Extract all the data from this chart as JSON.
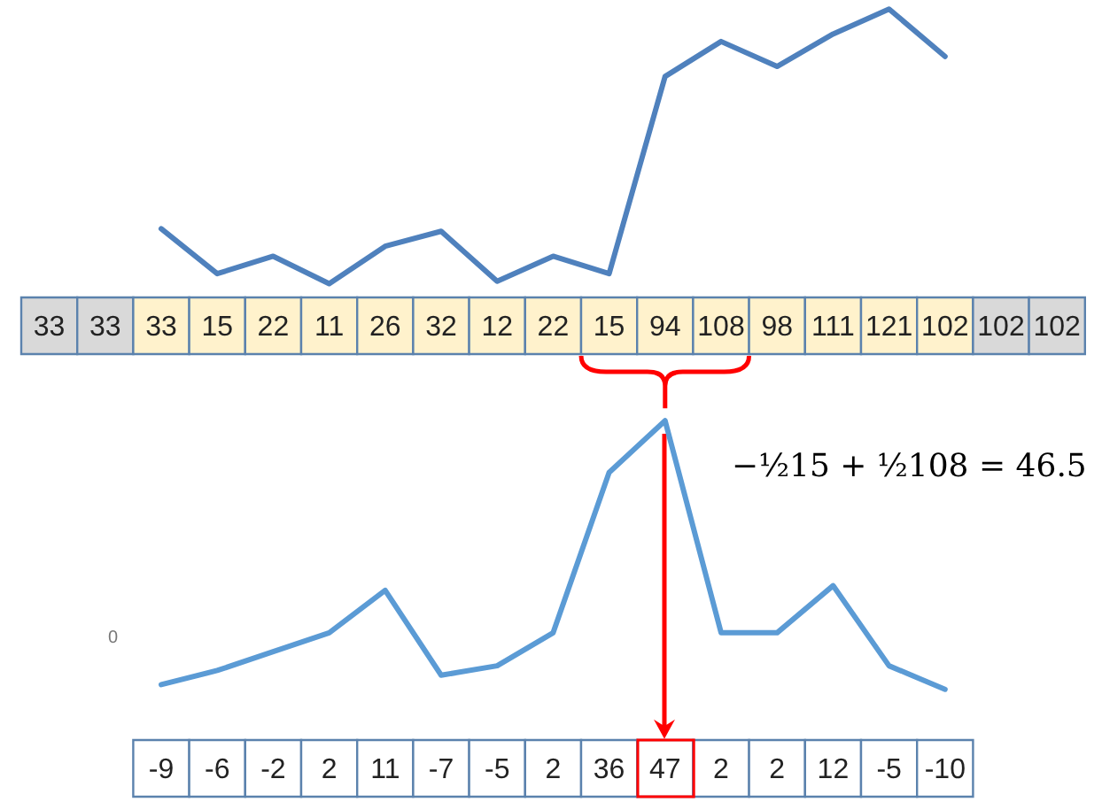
{
  "chart_data": [
    {
      "type": "line",
      "categories": [
        null,
        null,
        null,
        null,
        null,
        null,
        null,
        null,
        null,
        null,
        null,
        null,
        null,
        null,
        null,
        null,
        null,
        null,
        null
      ],
      "series": [
        {
          "color": "#4f81bd",
          "values": [
            null,
            null,
            33,
            15,
            22,
            11,
            26,
            32,
            12,
            22,
            15,
            94,
            108,
            98,
            111,
            121,
            102,
            null,
            null
          ],
          "value_labels": [
            "33",
            "33",
            "33",
            "15",
            "22",
            "11",
            "26",
            "32",
            "12",
            "22",
            "15",
            "94",
            "108",
            "98",
            "111",
            "121",
            "102",
            "102",
            "102"
          ]
        }
      ],
      "tick_labels": false,
      "marker": "none"
    },
    {
      "type": "line",
      "categories": [
        null,
        null,
        null,
        null,
        null,
        null,
        null,
        null,
        null,
        null,
        null,
        null,
        null,
        null,
        null
      ],
      "series": [
        {
          "color": "#5b9bd5",
          "values": [
            -9,
            -6,
            -2,
            2,
            11,
            -7,
            -5,
            2,
            36,
            47,
            2,
            2,
            12,
            -5,
            -10
          ]
        }
      ],
      "tick_labels": false,
      "data_labels": true,
      "marker": "none",
      "annotations": [
        "0",
        "−½15 + ½108 = 46.5"
      ]
    }
  ]
}
